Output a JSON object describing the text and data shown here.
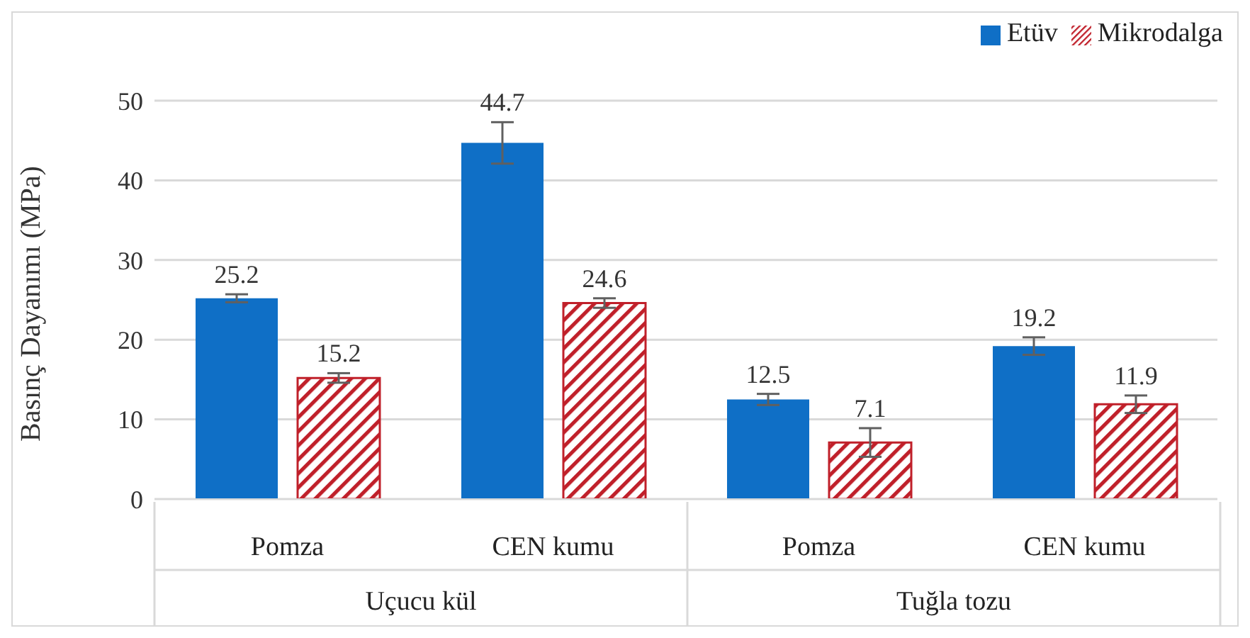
{
  "chart_data": {
    "type": "bar",
    "ylabel": "Basınç Dayanımı (MPa)",
    "categories": [
      "Pomza",
      "CEN kumu",
      "Pomza",
      "CEN kumu"
    ],
    "annotations": [
      "Uçucu kül",
      "Tuğla tozu"
    ],
    "series": [
      {
        "name": "Etüv",
        "color": "#0f6fc6",
        "values": [
          25.2,
          44.7,
          12.5,
          19.2
        ],
        "errors": [
          0.5,
          2.6,
          0.7,
          1.1
        ]
      },
      {
        "name": "Mikrodalga",
        "color": "#c0202a",
        "values": [
          15.2,
          24.6,
          7.1,
          11.9
        ],
        "errors": [
          0.6,
          0.6,
          1.8,
          1.1
        ]
      }
    ],
    "ylim": [
      0,
      50
    ],
    "yticks": [
      0,
      10,
      20,
      30,
      40,
      50
    ],
    "grid": "y",
    "legend": "top right",
    "data_labels": true
  }
}
